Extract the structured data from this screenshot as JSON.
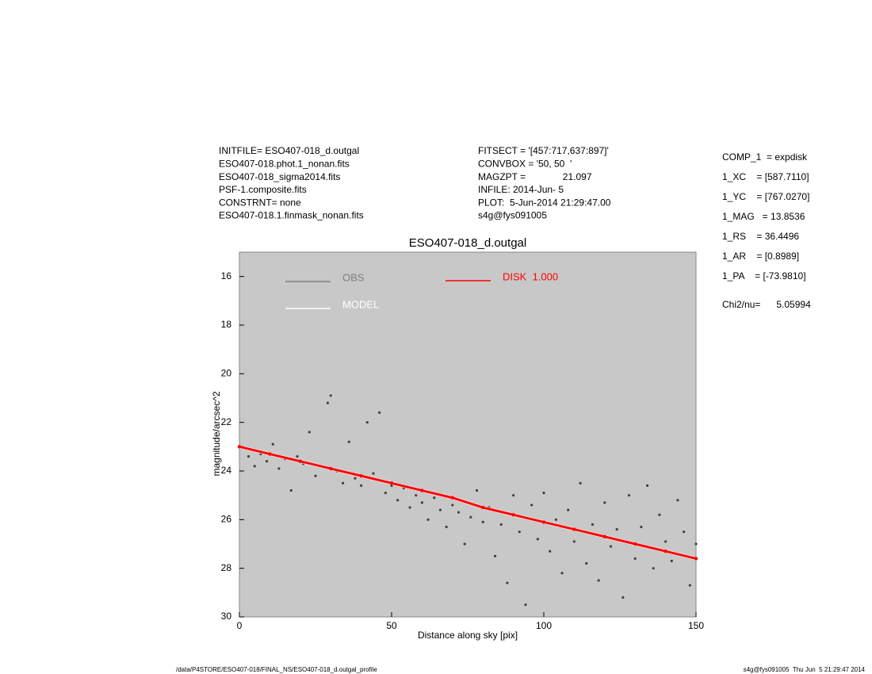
{
  "chart_data": {
    "type": "scatter",
    "title": "ESO407-018_d.outgal",
    "xlabel": "Distance along sky [pix]",
    "ylabel": "magnitude/arcsec^2",
    "xlim": [
      0,
      150
    ],
    "ylim": [
      15,
      30
    ],
    "y_inverted": true,
    "xticks": [
      0,
      50,
      100,
      150
    ],
    "yticks": [
      16,
      18,
      20,
      22,
      24,
      26,
      28,
      30
    ],
    "background": "#c8c8c8",
    "info_left": [
      "INITFILE= ESO407-018_d.outgal",
      "ESO407-018.phot.1_nonan.fits",
      "ESO407-018_sigma2014.fits",
      "PSF-1.composite.fits",
      "CONSTRNT= none",
      "ESO407-018.1.finmask_nonan.fits"
    ],
    "info_middle": [
      "FITSECT = '[457:717,637:897]'",
      "CONVBOX = '50, 50  '",
      "MAGZPT =              21.097",
      "INFILE: 2014-Jun- 5",
      "PLOT:  5-Jun-2014 21:29:47.00",
      "s4g@fys091005"
    ],
    "info_right": [
      "COMP_1  = expdisk",
      "1_XC    = [587.7110]",
      "1_YC    = [767.0270]",
      "1_MAG   = 13.8536",
      "1_RS    = 36.4496",
      "1_AR    = [0.8989]",
      "1_PA    = [-73.9810]"
    ],
    "chi2": "Chi2/nu=      5.05994",
    "footer_left": "/data/P4STORE/ESO407-018/FINAL_NS/ESO407-018_d.outgal_profile",
    "footer_right": "s4g@fys091005  Thu Jun  5 21:29:47 2014",
    "series": [
      {
        "name": "OBS",
        "color": "#404040",
        "legend_color": "#808080",
        "x": [
          1,
          3,
          5,
          7,
          9,
          11,
          13,
          15,
          17,
          19,
          21,
          23,
          25,
          27,
          29,
          30,
          32,
          34,
          36,
          38,
          40,
          42,
          44,
          46,
          48,
          50,
          52,
          54,
          56,
          58,
          60,
          62,
          64,
          66,
          68,
          70,
          72,
          74,
          76,
          78,
          80,
          82,
          84,
          86,
          88,
          90,
          92,
          94,
          96,
          98,
          100,
          102,
          104,
          106,
          108,
          110,
          112,
          114,
          116,
          118,
          120,
          122,
          124,
          126,
          128,
          130,
          132,
          134,
          136,
          138,
          140,
          142,
          144,
          146,
          148,
          150
        ],
        "values": [
          23.0,
          23.4,
          23.8,
          23.3,
          23.6,
          22.9,
          23.9,
          23.5,
          24.8,
          23.4,
          23.7,
          22.4,
          24.2,
          23.8,
          21.2,
          20.9,
          24.0,
          24.5,
          22.8,
          24.3,
          24.6,
          22.0,
          24.1,
          21.6,
          24.9,
          24.6,
          25.2,
          24.7,
          25.5,
          25.0,
          25.3,
          26.0,
          25.1,
          25.6,
          26.3,
          25.4,
          25.7,
          27.0,
          25.9,
          24.8,
          26.1,
          25.5,
          27.5,
          26.2,
          28.6,
          25.0,
          26.5,
          29.5,
          25.4,
          26.8,
          24.9,
          27.3,
          26.0,
          28.2,
          25.6,
          26.9,
          24.5,
          27.8,
          26.2,
          28.5,
          25.3,
          27.1,
          26.4,
          29.2,
          25.0,
          27.6,
          26.3,
          24.6,
          28.0,
          25.8,
          26.9,
          27.7,
          25.2,
          26.5,
          28.7,
          27.0
        ]
      },
      {
        "name": "MODEL",
        "color": "#ffffff",
        "x": [
          0,
          10,
          20,
          30,
          40,
          50,
          60,
          70,
          80,
          90,
          100,
          110,
          120,
          130,
          140,
          150
        ],
        "values": [
          23.0,
          23.3,
          23.6,
          23.9,
          24.2,
          24.5,
          24.8,
          25.1,
          25.5,
          25.8,
          26.1,
          26.4,
          26.7,
          27.0,
          27.3,
          27.6
        ]
      },
      {
        "name": "DISK  1.000",
        "color": "#ff0000",
        "x": [
          0,
          10,
          20,
          30,
          40,
          50,
          60,
          70,
          80,
          90,
          100,
          110,
          120,
          130,
          140,
          150
        ],
        "values": [
          23.0,
          23.3,
          23.6,
          23.9,
          24.2,
          24.5,
          24.8,
          25.1,
          25.5,
          25.8,
          26.1,
          26.4,
          26.7,
          27.0,
          27.3,
          27.6
        ]
      }
    ]
  }
}
